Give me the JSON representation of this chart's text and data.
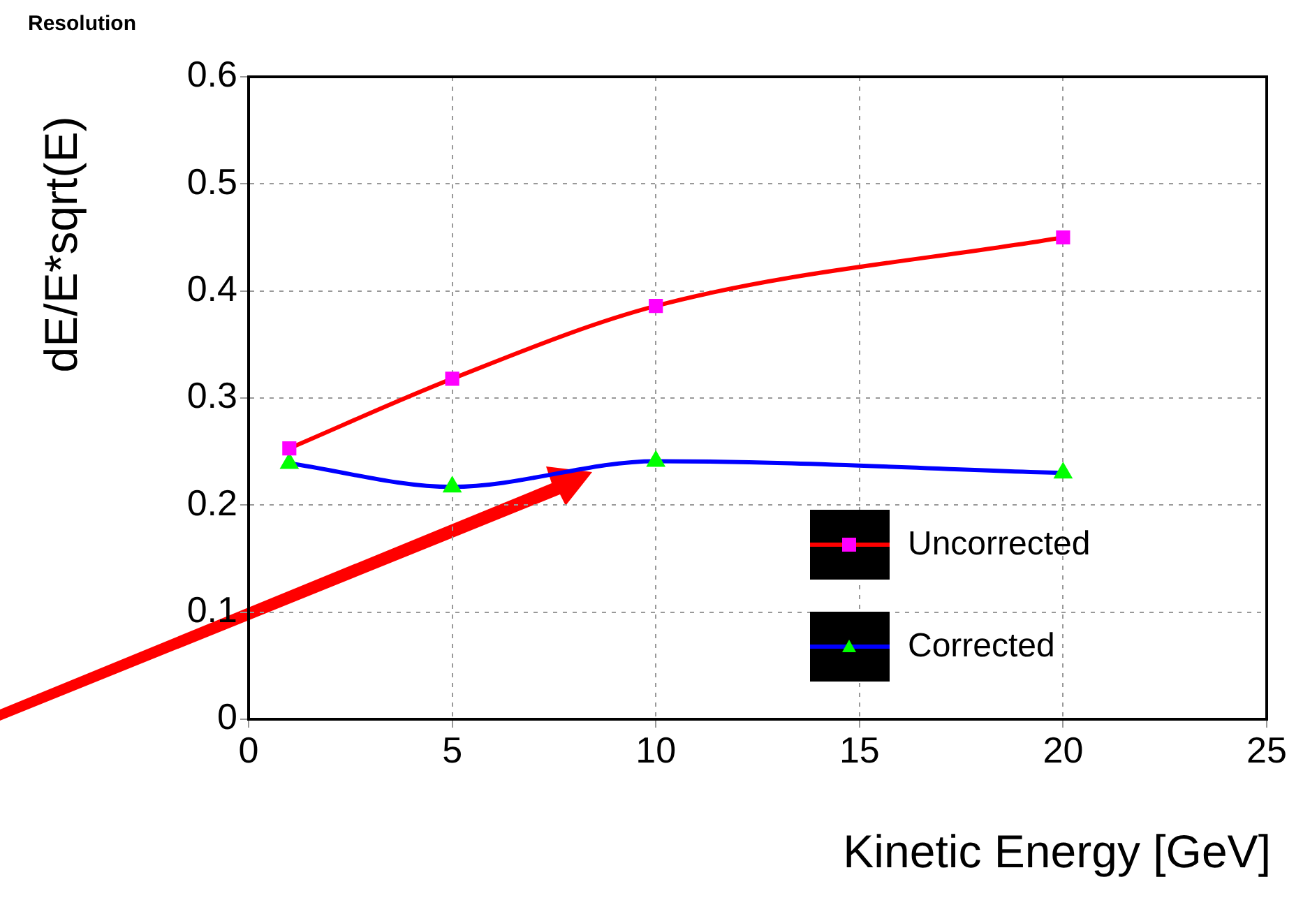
{
  "chart_data": {
    "type": "line",
    "title": "Resolution",
    "xlabel": "Kinetic Energy [GeV]",
    "ylabel": "dE/E*sqrt(E)",
    "x": [
      1,
      5,
      10,
      20
    ],
    "series": [
      {
        "name": "Uncorrected",
        "color": "#ff0000",
        "colors": [
          "#ff00ff",
          "#ff00ff",
          "#ff00ff",
          "#ff00ff"
        ],
        "marker": "square",
        "values": [
          0.253,
          0.318,
          0.386,
          0.45
        ]
      },
      {
        "name": "Corrected",
        "color": "#0000ff",
        "colors": [
          "#00ff00",
          "#00ff00",
          "#00ff00",
          "#00ff00"
        ],
        "marker": "triangle",
        "values": [
          0.239,
          0.217,
          0.241,
          0.23
        ]
      }
    ],
    "xlim": [
      0,
      25
    ],
    "xticks": [
      0,
      5,
      10,
      15,
      20,
      25
    ],
    "ylim": [
      0,
      0.6
    ],
    "yticks": [
      0,
      0.1,
      0.2,
      0.3,
      0.4,
      0.5,
      0.6
    ],
    "grid": true,
    "legend": "bottom right",
    "line_style": "solid"
  }
}
